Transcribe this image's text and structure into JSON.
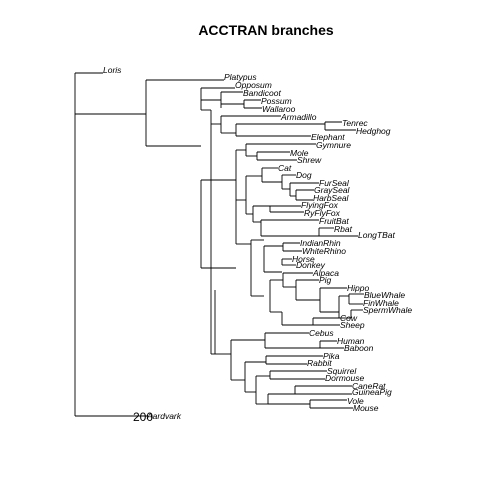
{
  "figure": {
    "title": "ACCTRAN branches",
    "scale_bar_label": "200",
    "tips": [
      "Loris",
      "Platypus",
      "Opposum",
      "Bandicoot",
      "Possum",
      "Wallaroo",
      "Armadillo",
      "Tenrec",
      "Hedghog",
      "Elephant",
      "Gymnure",
      "Mole",
      "Shrew",
      "Cat",
      "Dog",
      "FurSeal",
      "GraySeal",
      "HarbSeal",
      "FlyingFox",
      "RyFlyFox",
      "FruitBat",
      "Rbat",
      "LongTBat",
      "IndianRhin",
      "WhiteRhino",
      "Horse",
      "Donkey",
      "Alpaca",
      "Pig",
      "Hippo",
      "BlueWhale",
      "FinWhale",
      "SpermWhale",
      "Cow",
      "Sheep",
      "Cebus",
      "Human",
      "Baboon",
      "Pika",
      "Rabbit",
      "Squirrel",
      "Dormouse",
      "CaneRat",
      "GuineaPig",
      "Vole",
      "Mouse",
      "Aardvark"
    ]
  }
}
